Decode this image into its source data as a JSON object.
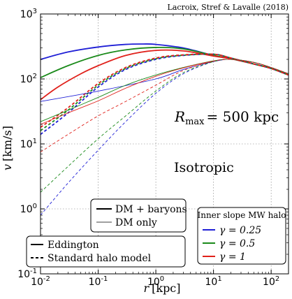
{
  "chart_data": {
    "type": "line",
    "citation": "Lacroix, Stref & Lavalle (2018)",
    "xlabel_var": "r",
    "xlabel_unit": "[kpc]",
    "ylabel_var": "v",
    "ylabel_unit": "[km/s]",
    "x_log": true,
    "y_log": true,
    "xlim": [
      0.01,
      200
    ],
    "ylim": [
      0.1,
      1000
    ],
    "grid": true,
    "x_ticks": [
      {
        "value": 0.01,
        "base": "10",
        "exp": "-2"
      },
      {
        "value": 0.1,
        "base": "10",
        "exp": "-1"
      },
      {
        "value": 1,
        "base": "10",
        "exp": "0"
      },
      {
        "value": 10,
        "base": "10",
        "exp": "1"
      },
      {
        "value": 100,
        "base": "10",
        "exp": "2"
      }
    ],
    "y_ticks": [
      {
        "value": 0.1,
        "base": "10",
        "exp": "-1"
      },
      {
        "value": 1,
        "base": "10",
        "exp": "0"
      },
      {
        "value": 10,
        "base": "10",
        "exp": "1"
      },
      {
        "value": 100,
        "base": "10",
        "exp": "2"
      },
      {
        "value": 1000,
        "base": "10",
        "exp": "3"
      }
    ],
    "annotations": {
      "rmax_var": "R",
      "rmax_sub": "max",
      "rmax_value": "= 500 kpc",
      "anisotropy": "Isotropic"
    },
    "legend_mass": {
      "placement": "lower-center",
      "items": [
        {
          "label": "DM + baryons",
          "style": "thick"
        },
        {
          "label": "DM only",
          "style": "thin"
        }
      ]
    },
    "legend_method": {
      "placement": "lower-left",
      "items": [
        {
          "label": "Eddington",
          "style": "solid"
        },
        {
          "label": "Standard halo model",
          "style": "dashed"
        }
      ]
    },
    "legend_slope": {
      "placement": "lower-right",
      "title": "Inner slope MW halo",
      "items": [
        {
          "label": "γ = 0.25",
          "color": "#1f1fd6"
        },
        {
          "label": "γ = 0.5",
          "color": "#1a8a1a"
        },
        {
          "label": "γ = 1",
          "color": "#e0201a"
        }
      ]
    },
    "series": [
      {
        "gamma": "0.25",
        "color": "#1f1fd6",
        "mass": "DM + baryons",
        "method": "Eddington",
        "points": [
          [
            0.01,
            200
          ],
          [
            0.03,
            260
          ],
          [
            0.1,
            310
          ],
          [
            0.3,
            340
          ],
          [
            0.6,
            345
          ],
          [
            1,
            340
          ],
          [
            3,
            300
          ],
          [
            10,
            230
          ],
          [
            20,
            205
          ],
          [
            50,
            170
          ],
          [
            100,
            145
          ],
          [
            200,
            115
          ]
        ]
      },
      {
        "gamma": "0.5",
        "color": "#1a8a1a",
        "mass": "DM + baryons",
        "method": "Eddington",
        "points": [
          [
            0.01,
            105
          ],
          [
            0.03,
            160
          ],
          [
            0.1,
            230
          ],
          [
            0.3,
            280
          ],
          [
            1,
            305
          ],
          [
            3,
            290
          ],
          [
            10,
            230
          ],
          [
            20,
            205
          ],
          [
            50,
            170
          ],
          [
            100,
            145
          ],
          [
            200,
            115
          ]
        ]
      },
      {
        "gamma": "1",
        "color": "#e0201a",
        "mass": "DM + baryons",
        "method": "Eddington",
        "points": [
          [
            0.01,
            48
          ],
          [
            0.02,
            75
          ],
          [
            0.05,
            120
          ],
          [
            0.1,
            160
          ],
          [
            0.3,
            230
          ],
          [
            1,
            275
          ],
          [
            3,
            270
          ],
          [
            10,
            225
          ],
          [
            20,
            205
          ],
          [
            50,
            170
          ],
          [
            100,
            145
          ],
          [
            200,
            115
          ]
        ]
      },
      {
        "gamma": "0.25",
        "color": "#1f1fd6",
        "mass": "DM + baryons",
        "method": "Standard halo model",
        "points": [
          [
            0.01,
            14
          ],
          [
            0.03,
            30
          ],
          [
            0.1,
            75
          ],
          [
            0.3,
            140
          ],
          [
            1,
            200
          ],
          [
            3,
            230
          ],
          [
            10,
            240
          ],
          [
            20,
            210
          ],
          [
            50,
            170
          ],
          [
            100,
            145
          ],
          [
            200,
            115
          ]
        ]
      },
      {
        "gamma": "0.5",
        "color": "#1a8a1a",
        "mass": "DM + baryons",
        "method": "Standard halo model",
        "points": [
          [
            0.01,
            16
          ],
          [
            0.03,
            33
          ],
          [
            0.1,
            80
          ],
          [
            0.3,
            145
          ],
          [
            1,
            205
          ],
          [
            3,
            232
          ],
          [
            10,
            240
          ],
          [
            20,
            210
          ],
          [
            50,
            170
          ],
          [
            100,
            145
          ],
          [
            200,
            115
          ]
        ]
      },
      {
        "gamma": "1",
        "color": "#e0201a",
        "mass": "DM + baryons",
        "method": "Standard halo model",
        "points": [
          [
            0.01,
            18
          ],
          [
            0.03,
            36
          ],
          [
            0.1,
            85
          ],
          [
            0.3,
            150
          ],
          [
            1,
            210
          ],
          [
            3,
            235
          ],
          [
            10,
            240
          ],
          [
            20,
            210
          ],
          [
            50,
            170
          ],
          [
            100,
            145
          ],
          [
            200,
            115
          ]
        ]
      },
      {
        "gamma": "0.25",
        "color": "#1f1fd6",
        "mass": "DM only",
        "method": "Eddington",
        "points": [
          [
            0.01,
            45
          ],
          [
            0.1,
            65
          ],
          [
            1,
            100
          ],
          [
            3,
            140
          ],
          [
            10,
            185
          ],
          [
            20,
            200
          ],
          [
            50,
            180
          ],
          [
            100,
            150
          ],
          [
            200,
            120
          ]
        ]
      },
      {
        "gamma": "0.5",
        "color": "#1a8a1a",
        "mass": "DM only",
        "method": "Eddington",
        "points": [
          [
            0.01,
            22
          ],
          [
            0.03,
            33
          ],
          [
            0.1,
            52
          ],
          [
            0.3,
            80
          ],
          [
            1,
            115
          ],
          [
            3,
            150
          ],
          [
            10,
            190
          ],
          [
            20,
            200
          ],
          [
            50,
            180
          ],
          [
            100,
            150
          ],
          [
            200,
            120
          ]
        ]
      },
      {
        "gamma": "1",
        "color": "#e0201a",
        "mass": "DM only",
        "method": "Eddington",
        "points": [
          [
            0.01,
            20
          ],
          [
            0.03,
            30
          ],
          [
            0.1,
            46
          ],
          [
            0.3,
            72
          ],
          [
            1,
            110
          ],
          [
            3,
            148
          ],
          [
            10,
            188
          ],
          [
            20,
            200
          ],
          [
            50,
            180
          ],
          [
            100,
            150
          ],
          [
            200,
            120
          ]
        ]
      },
      {
        "gamma": "0.25",
        "color": "#1f1fd6",
        "mass": "DM only",
        "method": "Standard halo model",
        "points": [
          [
            0.01,
            0.8
          ],
          [
            0.03,
            2.5
          ],
          [
            0.1,
            8
          ],
          [
            0.3,
            22
          ],
          [
            1,
            60
          ],
          [
            3,
            120
          ],
          [
            10,
            185
          ],
          [
            20,
            200
          ],
          [
            50,
            180
          ],
          [
            100,
            150
          ],
          [
            200,
            120
          ]
        ]
      },
      {
        "gamma": "0.5",
        "color": "#1a8a1a",
        "mass": "DM only",
        "method": "Standard halo model",
        "points": [
          [
            0.01,
            1.8
          ],
          [
            0.03,
            4.5
          ],
          [
            0.1,
            12
          ],
          [
            0.3,
            27
          ],
          [
            1,
            65
          ],
          [
            3,
            125
          ],
          [
            10,
            185
          ],
          [
            20,
            200
          ],
          [
            50,
            180
          ],
          [
            100,
            150
          ],
          [
            200,
            120
          ]
        ]
      },
      {
        "gamma": "1",
        "color": "#e0201a",
        "mass": "DM only",
        "method": "Standard halo model",
        "points": [
          [
            0.01,
            7.5
          ],
          [
            0.03,
            14
          ],
          [
            0.1,
            27
          ],
          [
            0.3,
            45
          ],
          [
            1,
            80
          ],
          [
            3,
            135
          ],
          [
            10,
            188
          ],
          [
            20,
            200
          ],
          [
            50,
            180
          ],
          [
            100,
            150
          ],
          [
            200,
            120
          ]
        ]
      }
    ]
  }
}
